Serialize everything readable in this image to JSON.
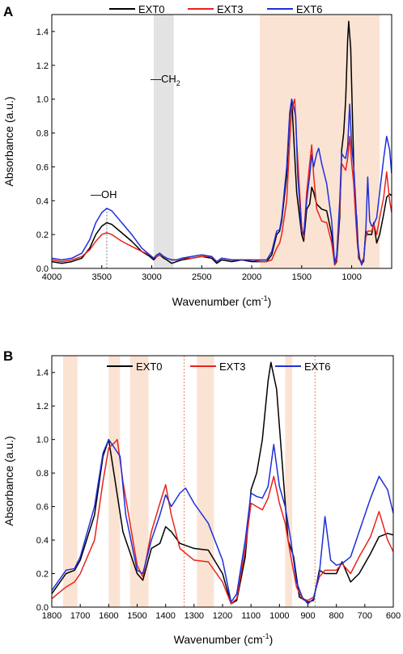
{
  "colors": {
    "EXT0": "#000000",
    "EXT3": "#e8231c",
    "EXT6": "#1f2fd9",
    "shade_peach": "#fbe3d3",
    "shade_gray": "#e3e3e3",
    "dotted_marker": "#e8874a"
  },
  "chart_data": [
    {
      "panel": "A",
      "type": "line",
      "xlabel": "Wavenumber (cm",
      "xlabel_sup": "-1",
      "xlabel_end": ")",
      "ylabel": "Absorbance (a.u.)",
      "xlim": [
        4000,
        600
      ],
      "ylim": [
        0,
        1.5
      ],
      "x_reversed": true,
      "xticks": [
        4000,
        3500,
        3000,
        2500,
        2000,
        1500,
        1000
      ],
      "yticks": [
        "0.0",
        "0.2",
        "0.4",
        "0.6",
        "0.8",
        "1.0",
        "1.2",
        "1.4"
      ],
      "legend": {
        "placement": "top-center",
        "entries": [
          "EXT0",
          "EXT3",
          "EXT6"
        ]
      },
      "shaded_regions": [
        {
          "from": 2980,
          "to": 2780,
          "color": "gray"
        },
        {
          "from": 1920,
          "to": 720,
          "color": "peach"
        }
      ],
      "annotations": [
        {
          "text": "—OH",
          "x": 3450
        },
        {
          "text": "—CH",
          "sub": "2",
          "x": 2870
        }
      ],
      "dotted_lines": [
        3450
      ],
      "series": [
        {
          "name": "EXT0",
          "points": [
            [
              4000,
              0.04
            ],
            [
              3900,
              0.03
            ],
            [
              3800,
              0.04
            ],
            [
              3700,
              0.06
            ],
            [
              3620,
              0.12
            ],
            [
              3560,
              0.2
            ],
            [
              3500,
              0.25
            ],
            [
              3450,
              0.27
            ],
            [
              3400,
              0.26
            ],
            [
              3300,
              0.21
            ],
            [
              3200,
              0.16
            ],
            [
              3100,
              0.1
            ],
            [
              3020,
              0.07
            ],
            [
              2980,
              0.05
            ],
            [
              2950,
              0.07
            ],
            [
              2920,
              0.08
            ],
            [
              2880,
              0.06
            ],
            [
              2850,
              0.05
            ],
            [
              2800,
              0.03
            ],
            [
              2750,
              0.04
            ],
            [
              2700,
              0.05
            ],
            [
              2600,
              0.06
            ],
            [
              2500,
              0.07
            ],
            [
              2400,
              0.06
            ],
            [
              2350,
              0.03
            ],
            [
              2300,
              0.05
            ],
            [
              2200,
              0.04
            ],
            [
              2100,
              0.05
            ],
            [
              2000,
              0.04
            ],
            [
              1900,
              0.04
            ],
            [
              1850,
              0.04
            ],
            [
              1800,
              0.08
            ],
            [
              1750,
              0.2
            ],
            [
              1720,
              0.22
            ],
            [
              1700,
              0.28
            ],
            [
              1650,
              0.55
            ],
            [
              1620,
              0.9
            ],
            [
              1600,
              1.0
            ],
            [
              1580,
              0.78
            ],
            [
              1550,
              0.45
            ],
            [
              1500,
              0.2
            ],
            [
              1480,
              0.16
            ],
            [
              1450,
              0.35
            ],
            [
              1420,
              0.38
            ],
            [
              1400,
              0.48
            ],
            [
              1380,
              0.45
            ],
            [
              1350,
              0.38
            ],
            [
              1300,
              0.35
            ],
            [
              1250,
              0.34
            ],
            [
              1200,
              0.2
            ],
            [
              1170,
              0.02
            ],
            [
              1150,
              0.04
            ],
            [
              1120,
              0.3
            ],
            [
              1100,
              0.7
            ],
            [
              1080,
              0.8
            ],
            [
              1060,
              1.0
            ],
            [
              1040,
              1.35
            ],
            [
              1030,
              1.46
            ],
            [
              1010,
              1.3
            ],
            [
              990,
              0.85
            ],
            [
              970,
              0.4
            ],
            [
              950,
              0.3
            ],
            [
              930,
              0.06
            ],
            [
              900,
              0.03
            ],
            [
              880,
              0.04
            ],
            [
              860,
              0.22
            ],
            [
              840,
              0.2
            ],
            [
              800,
              0.2
            ],
            [
              780,
              0.27
            ],
            [
              750,
              0.15
            ],
            [
              720,
              0.2
            ],
            [
              680,
              0.32
            ],
            [
              650,
              0.42
            ],
            [
              620,
              0.44
            ],
            [
              600,
              0.43
            ]
          ]
        },
        {
          "name": "EXT3",
          "points": [
            [
              4000,
              0.05
            ],
            [
              3900,
              0.04
            ],
            [
              3800,
              0.05
            ],
            [
              3700,
              0.07
            ],
            [
              3620,
              0.11
            ],
            [
              3560,
              0.16
            ],
            [
              3500,
              0.2
            ],
            [
              3450,
              0.21
            ],
            [
              3400,
              0.2
            ],
            [
              3300,
              0.16
            ],
            [
              3200,
              0.13
            ],
            [
              3100,
              0.1
            ],
            [
              3020,
              0.08
            ],
            [
              2980,
              0.06
            ],
            [
              2950,
              0.07
            ],
            [
              2920,
              0.08
            ],
            [
              2880,
              0.07
            ],
            [
              2850,
              0.06
            ],
            [
              2800,
              0.05
            ],
            [
              2750,
              0.05
            ],
            [
              2700,
              0.06
            ],
            [
              2600,
              0.06
            ],
            [
              2500,
              0.07
            ],
            [
              2400,
              0.07
            ],
            [
              2350,
              0.04
            ],
            [
              2300,
              0.06
            ],
            [
              2200,
              0.05
            ],
            [
              2100,
              0.05
            ],
            [
              2000,
              0.05
            ],
            [
              1900,
              0.04
            ],
            [
              1850,
              0.04
            ],
            [
              1800,
              0.05
            ],
            [
              1750,
              0.12
            ],
            [
              1720,
              0.15
            ],
            [
              1700,
              0.2
            ],
            [
              1650,
              0.4
            ],
            [
              1620,
              0.75
            ],
            [
              1600,
              0.95
            ],
            [
              1580,
              0.98
            ],
            [
              1570,
              1.0
            ],
            [
              1550,
              0.75
            ],
            [
              1500,
              0.25
            ],
            [
              1480,
              0.18
            ],
            [
              1450,
              0.45
            ],
            [
              1420,
              0.62
            ],
            [
              1400,
              0.73
            ],
            [
              1380,
              0.55
            ],
            [
              1350,
              0.35
            ],
            [
              1300,
              0.28
            ],
            [
              1250,
              0.27
            ],
            [
              1200,
              0.15
            ],
            [
              1170,
              0.02
            ],
            [
              1150,
              0.05
            ],
            [
              1120,
              0.35
            ],
            [
              1100,
              0.62
            ],
            [
              1080,
              0.6
            ],
            [
              1060,
              0.58
            ],
            [
              1040,
              0.65
            ],
            [
              1020,
              0.78
            ],
            [
              1000,
              0.62
            ],
            [
              980,
              0.5
            ],
            [
              960,
              0.3
            ],
            [
              940,
              0.12
            ],
            [
              920,
              0.05
            ],
            [
              900,
              0.04
            ],
            [
              880,
              0.06
            ],
            [
              860,
              0.18
            ],
            [
              840,
              0.22
            ],
            [
              800,
              0.22
            ],
            [
              780,
              0.26
            ],
            [
              750,
              0.2
            ],
            [
              720,
              0.3
            ],
            [
              680,
              0.42
            ],
            [
              650,
              0.57
            ],
            [
              620,
              0.4
            ],
            [
              600,
              0.33
            ]
          ]
        },
        {
          "name": "EXT6",
          "points": [
            [
              4000,
              0.06
            ],
            [
              3900,
              0.05
            ],
            [
              3800,
              0.06
            ],
            [
              3700,
              0.09
            ],
            [
              3620,
              0.17
            ],
            [
              3560,
              0.27
            ],
            [
              3500,
              0.33
            ],
            [
              3450,
              0.355
            ],
            [
              3400,
              0.34
            ],
            [
              3300,
              0.27
            ],
            [
              3200,
              0.2
            ],
            [
              3100,
              0.12
            ],
            [
              3020,
              0.08
            ],
            [
              2980,
              0.06
            ],
            [
              2950,
              0.08
            ],
            [
              2920,
              0.09
            ],
            [
              2880,
              0.07
            ],
            [
              2850,
              0.06
            ],
            [
              2800,
              0.05
            ],
            [
              2750,
              0.05
            ],
            [
              2700,
              0.06
            ],
            [
              2600,
              0.07
            ],
            [
              2500,
              0.08
            ],
            [
              2400,
              0.07
            ],
            [
              2350,
              0.04
            ],
            [
              2300,
              0.06
            ],
            [
              2200,
              0.05
            ],
            [
              2100,
              0.05
            ],
            [
              2000,
              0.05
            ],
            [
              1900,
              0.05
            ],
            [
              1850,
              0.05
            ],
            [
              1800,
              0.1
            ],
            [
              1750,
              0.22
            ],
            [
              1720,
              0.23
            ],
            [
              1700,
              0.3
            ],
            [
              1650,
              0.6
            ],
            [
              1620,
              0.92
            ],
            [
              1600,
              1.0
            ],
            [
              1580,
              0.95
            ],
            [
              1560,
              0.9
            ],
            [
              1540,
              0.55
            ],
            [
              1500,
              0.22
            ],
            [
              1480,
              0.2
            ],
            [
              1450,
              0.4
            ],
            [
              1420,
              0.55
            ],
            [
              1400,
              0.67
            ],
            [
              1380,
              0.6
            ],
            [
              1350,
              0.68
            ],
            [
              1330,
              0.71
            ],
            [
              1300,
              0.62
            ],
            [
              1250,
              0.5
            ],
            [
              1200,
              0.28
            ],
            [
              1170,
              0.03
            ],
            [
              1150,
              0.08
            ],
            [
              1120,
              0.4
            ],
            [
              1100,
              0.68
            ],
            [
              1080,
              0.66
            ],
            [
              1060,
              0.65
            ],
            [
              1040,
              0.72
            ],
            [
              1020,
              0.97
            ],
            [
              1000,
              0.72
            ],
            [
              980,
              0.6
            ],
            [
              960,
              0.4
            ],
            [
              940,
              0.15
            ],
            [
              920,
              0.06
            ],
            [
              900,
              0.02
            ],
            [
              880,
              0.05
            ],
            [
              860,
              0.2
            ],
            [
              840,
              0.54
            ],
            [
              820,
              0.28
            ],
            [
              800,
              0.25
            ],
            [
              780,
              0.26
            ],
            [
              750,
              0.3
            ],
            [
              720,
              0.45
            ],
            [
              680,
              0.65
            ],
            [
              650,
              0.78
            ],
            [
              620,
              0.7
            ],
            [
              600,
              0.56
            ]
          ]
        }
      ]
    },
    {
      "panel": "B",
      "type": "line",
      "xlabel": "Wavenumber (cm",
      "xlabel_sup": "-1",
      "xlabel_end": ")",
      "ylabel": "Absorbance (a.u.)",
      "xlim": [
        1800,
        600
      ],
      "ylim": [
        0,
        1.5
      ],
      "x_reversed": true,
      "xticks": [
        1800,
        1700,
        1600,
        1500,
        1400,
        1300,
        1200,
        1100,
        1000,
        900,
        800,
        700,
        600
      ],
      "yticks": [
        "0.0",
        "0.2",
        "0.4",
        "0.6",
        "0.8",
        "1.0",
        "1.2",
        "1.4"
      ],
      "legend": {
        "placement": "top-center",
        "entries": [
          "EXT0",
          "EXT3",
          "EXT6"
        ]
      },
      "shaded_regions": [
        {
          "from": 1760,
          "to": 1710,
          "color": "peach"
        },
        {
          "from": 1600,
          "to": 1560,
          "color": "peach"
        },
        {
          "from": 1525,
          "to": 1460,
          "color": "peach"
        },
        {
          "from": 1290,
          "to": 1230,
          "color": "peach"
        },
        {
          "from": 980,
          "to": 955,
          "color": "peach"
        }
      ],
      "dotted_lines": [
        1335,
        875
      ],
      "series_ref": "same as panel A, shown over 1800–600 cm-1"
    }
  ]
}
